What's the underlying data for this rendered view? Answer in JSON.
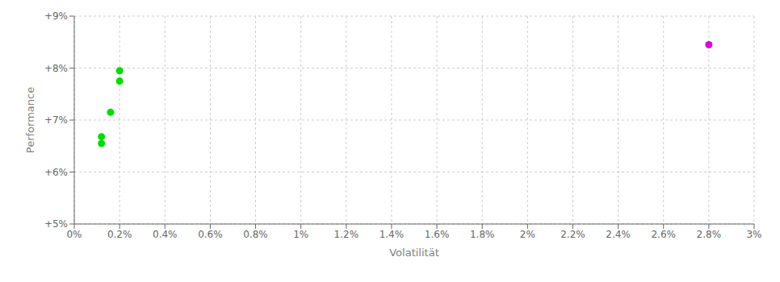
{
  "chart_data": {
    "type": "scatter",
    "x_label": "Volatilität",
    "y_label": "Performance",
    "xlim": [
      0.0,
      0.03
    ],
    "ylim": [
      0.05,
      0.09
    ],
    "xticks": [
      {
        "value": 0.0,
        "label": "0%"
      },
      {
        "value": 0.002,
        "label": "0.2%"
      },
      {
        "value": 0.004,
        "label": "0.4%"
      },
      {
        "value": 0.006,
        "label": "0.6%"
      },
      {
        "value": 0.008,
        "label": "0.8%"
      },
      {
        "value": 0.01,
        "label": "1%"
      },
      {
        "value": 0.012,
        "label": "1.2%"
      },
      {
        "value": 0.014,
        "label": "1.4%"
      },
      {
        "value": 0.016,
        "label": "1.6%"
      },
      {
        "value": 0.018,
        "label": "1.8%"
      },
      {
        "value": 0.02,
        "label": "2%"
      },
      {
        "value": 0.022,
        "label": "2.2%"
      },
      {
        "value": 0.024,
        "label": "2.4%"
      },
      {
        "value": 0.026,
        "label": "2.6%"
      },
      {
        "value": 0.028,
        "label": "2.8%"
      },
      {
        "value": 0.03,
        "label": "3%"
      }
    ],
    "yticks": [
      {
        "value": 0.05,
        "label": "+5%"
      },
      {
        "value": 0.06,
        "label": "+6%"
      },
      {
        "value": 0.07,
        "label": "+7%"
      },
      {
        "value": 0.08,
        "label": "+8%"
      },
      {
        "value": 0.09,
        "label": "+9%"
      }
    ],
    "grid": true,
    "series": [
      {
        "color": "#00dd00",
        "x": [
          0.002,
          0.002,
          0.0016,
          0.0012,
          0.0012
        ],
        "values": [
          0.0795,
          0.0775,
          0.0715,
          0.0668,
          0.0655
        ]
      },
      {
        "color": "#dd00dd",
        "x": [
          0.028
        ],
        "values": [
          0.0845
        ]
      }
    ]
  }
}
